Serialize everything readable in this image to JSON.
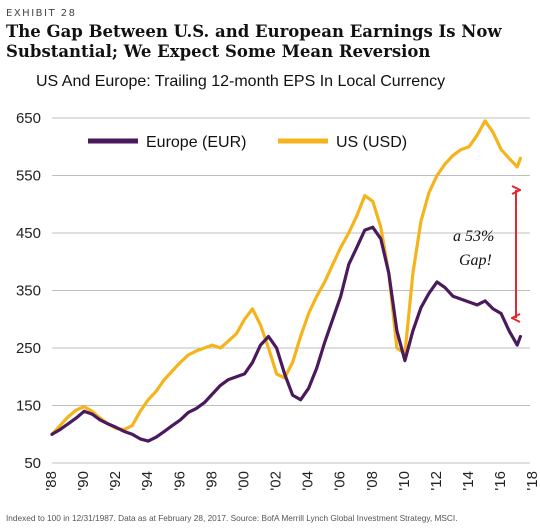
{
  "exhibit_label": "EXHIBIT 28",
  "headline_line1": "The Gap Between U.S. and European Earnings Is Now",
  "headline_line2": "Substantial; We Expect Some Mean Reversion",
  "footer": "Indexed to 100 in 12/31/1987. Data as at February 28, 2017. Source: BofA Merrill Lynch Global Investment Strategy, MSCI.",
  "annotation": {
    "line1": "a 53%",
    "line2": "Gap!"
  },
  "colors": {
    "europe": "#4a1a5c",
    "us": "#f5b41c",
    "arrow": "#e0282e",
    "grid": "#bfbfbf"
  },
  "chart_data": {
    "type": "line",
    "title": "US And Europe: Trailing 12-month EPS In Local Currency",
    "xlabel": "",
    "ylabel": "",
    "xlim": [
      1988,
      2017.8
    ],
    "ylim": [
      50,
      650
    ],
    "yticks": [
      50,
      150,
      250,
      350,
      450,
      550,
      650
    ],
    "ytick_labels": [
      "50",
      "150",
      "250",
      "350",
      "450",
      "550",
      "650"
    ],
    "xticks": [
      1988,
      1990,
      1992,
      1994,
      1996,
      1998,
      2000,
      2002,
      2004,
      2006,
      2008,
      2010,
      2012,
      2014,
      2016,
      2018
    ],
    "xtick_labels": [
      "'88",
      "'90",
      "'92",
      "'94",
      "'96",
      "'98",
      "'00",
      "'02",
      "'04",
      "'06",
      "'08",
      "'10",
      "'12",
      "'14",
      "'16",
      "'18"
    ],
    "grid": "horizontal",
    "legend_position": "top-left",
    "series": [
      {
        "name": "Europe (EUR)",
        "x": [
          1988,
          1988.5,
          1989,
          1989.5,
          1990,
          1990.5,
          1991,
          1991.5,
          1992,
          1992.5,
          1993,
          1993.5,
          1994,
          1994.5,
          1995,
          1995.5,
          1996,
          1996.5,
          1997,
          1997.5,
          1998,
          1998.5,
          1999,
          1999.5,
          2000,
          2000.5,
          2001,
          2001.5,
          2002,
          2002.5,
          2003,
          2003.5,
          2004,
          2004.5,
          2005,
          2005.5,
          2006,
          2006.5,
          2007,
          2007.5,
          2008,
          2008.5,
          2009,
          2009.5,
          2010,
          2010.5,
          2011,
          2011.5,
          2012,
          2012.5,
          2013,
          2013.5,
          2014,
          2014.5,
          2015,
          2015.5,
          2016,
          2016.5,
          2017,
          2017.2
        ],
        "values": [
          100,
          108,
          118,
          128,
          140,
          135,
          125,
          118,
          112,
          105,
          100,
          92,
          88,
          95,
          105,
          115,
          125,
          138,
          145,
          155,
          170,
          185,
          195,
          200,
          205,
          225,
          255,
          270,
          250,
          205,
          168,
          160,
          180,
          215,
          260,
          300,
          340,
          395,
          425,
          455,
          460,
          440,
          380,
          280,
          228,
          280,
          320,
          345,
          365,
          355,
          340,
          335,
          330,
          325,
          332,
          318,
          310,
          280,
          255,
          270
        ]
      },
      {
        "name": "US (USD)",
        "x": [
          1988,
          1988.5,
          1989,
          1989.5,
          1990,
          1990.5,
          1991,
          1991.5,
          1992,
          1992.5,
          1993,
          1993.5,
          1994,
          1994.5,
          1995,
          1995.5,
          1996,
          1996.5,
          1997,
          1997.5,
          1998,
          1998.5,
          1999,
          1999.5,
          2000,
          2000.5,
          2001,
          2001.5,
          2002,
          2002.5,
          2003,
          2003.5,
          2004,
          2004.5,
          2005,
          2005.5,
          2006,
          2006.5,
          2007,
          2007.5,
          2008,
          2008.5,
          2009,
          2009.5,
          2010,
          2010.5,
          2011,
          2011.5,
          2012,
          2012.5,
          2013,
          2013.5,
          2014,
          2014.5,
          2015,
          2015.5,
          2016,
          2016.5,
          2017,
          2017.2
        ],
        "values": [
          100,
          115,
          130,
          142,
          148,
          140,
          128,
          118,
          110,
          108,
          115,
          140,
          160,
          175,
          195,
          210,
          225,
          238,
          245,
          250,
          255,
          250,
          262,
          275,
          300,
          318,
          290,
          250,
          205,
          198,
          225,
          270,
          310,
          340,
          365,
          395,
          425,
          450,
          480,
          515,
          505,
          460,
          380,
          250,
          240,
          380,
          470,
          520,
          550,
          570,
          585,
          595,
          600,
          620,
          645,
          625,
          595,
          580,
          565,
          580
        ]
      }
    ]
  }
}
